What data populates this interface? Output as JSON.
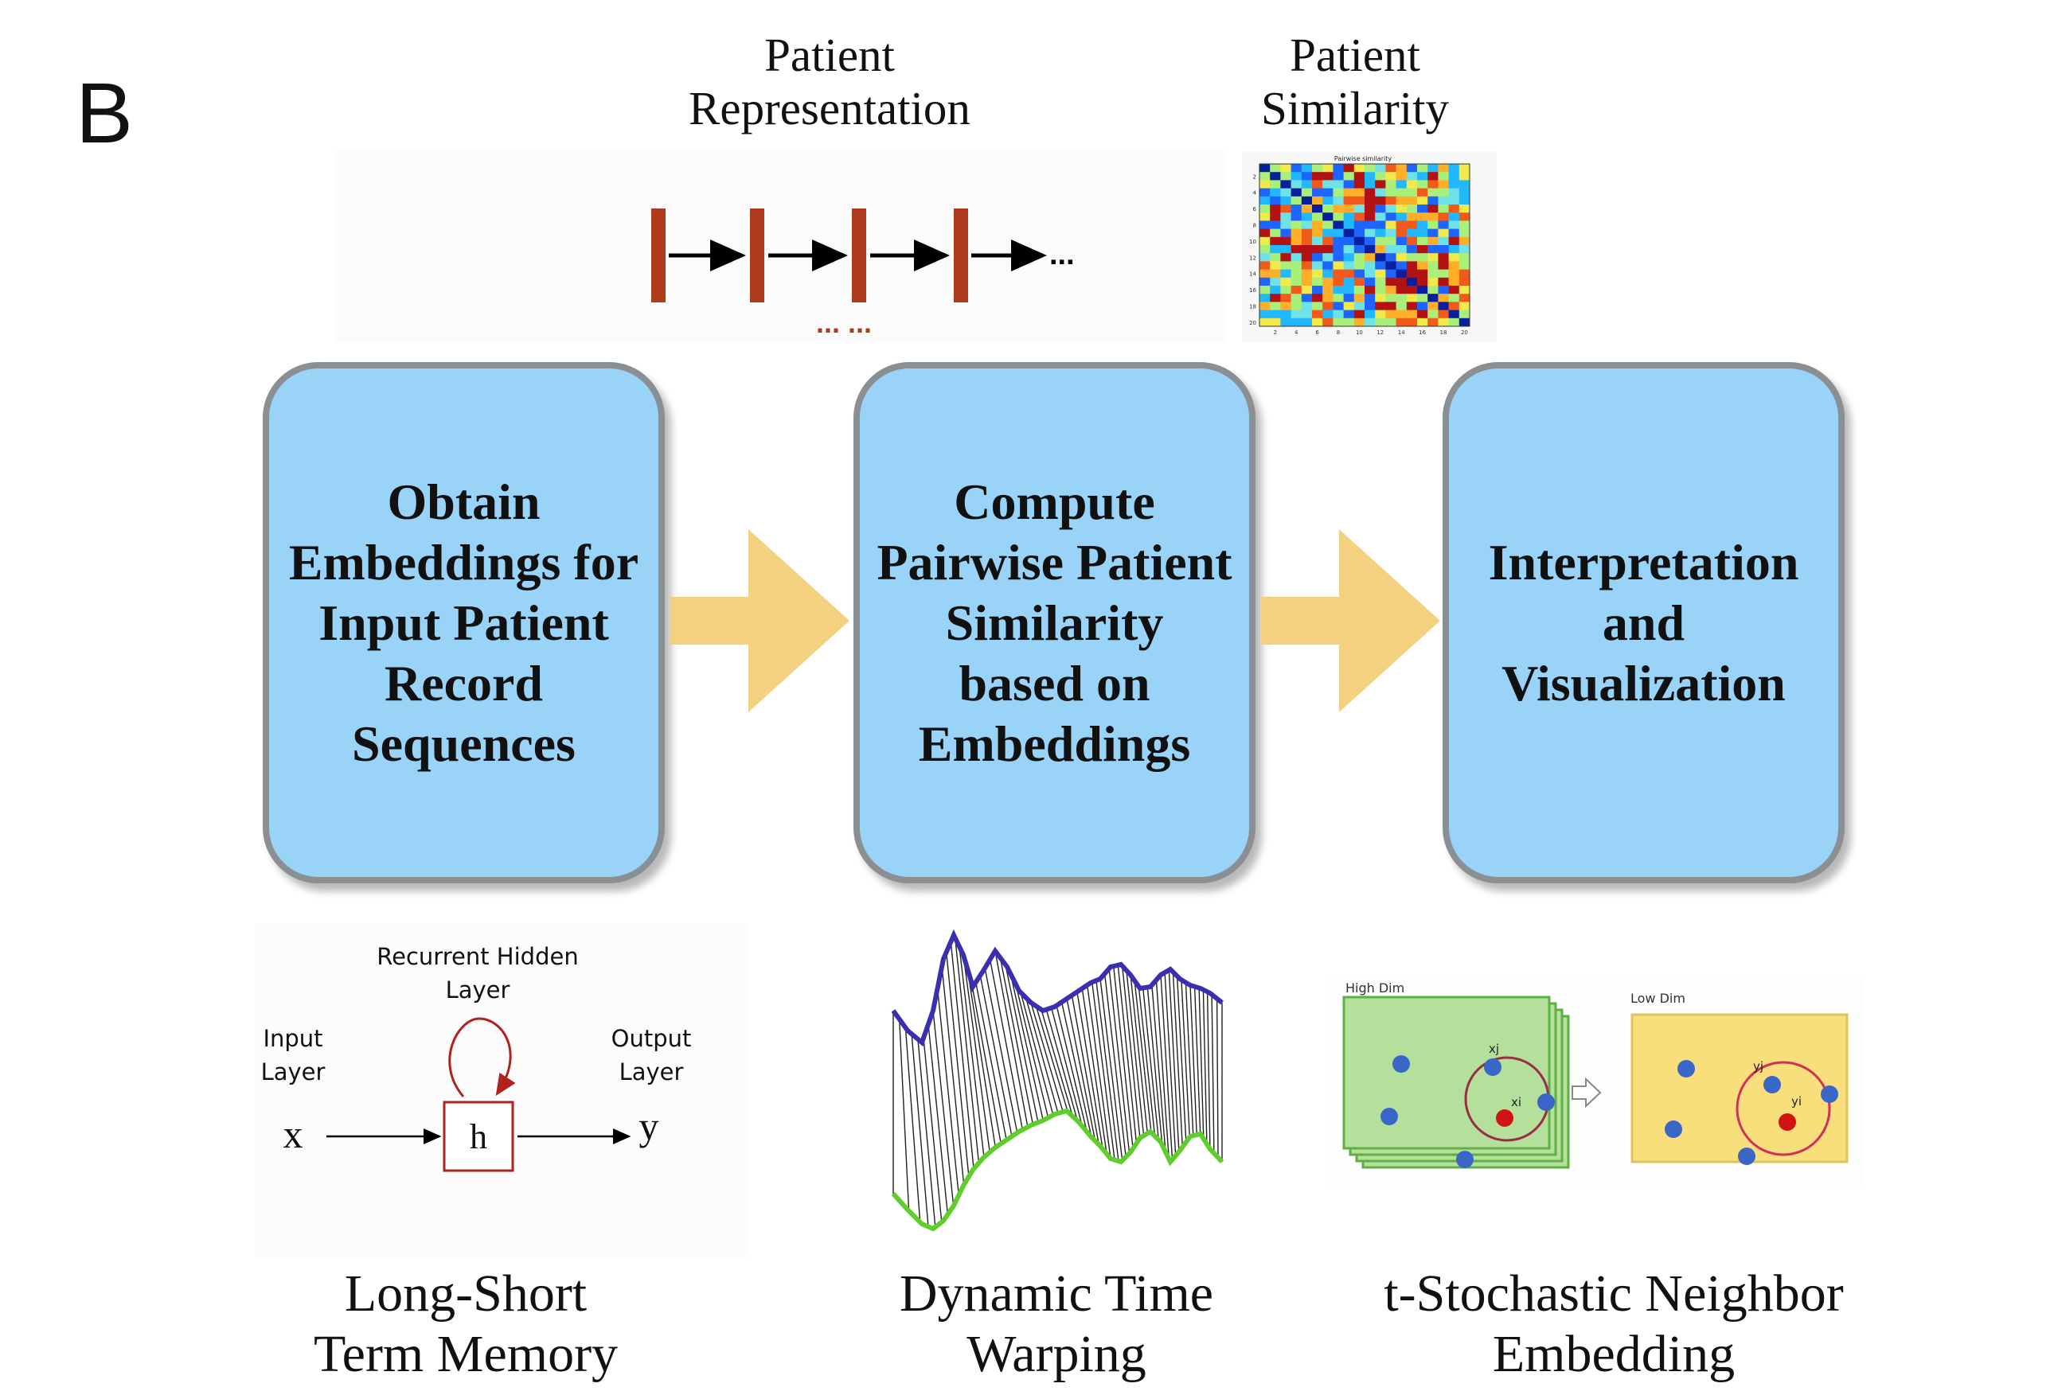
{
  "panel_letter": "B",
  "top_captions": {
    "representation": [
      "Patient",
      "Representation"
    ],
    "similarity": [
      "Patient",
      "Similarity"
    ]
  },
  "steps": [
    {
      "lines": [
        "Obtain",
        "Embeddings for",
        "Input Patient",
        "Record",
        "Sequences"
      ]
    },
    {
      "lines": [
        "Compute",
        "Pairwise Patient",
        "Similarity",
        "based on",
        "Embeddings"
      ]
    },
    {
      "lines": [
        "Interpretation",
        "and",
        "Visualization"
      ]
    }
  ],
  "bottom_captions": {
    "lstm": [
      "Long-Short",
      "Term Memory"
    ],
    "dtw": [
      "Dynamic Time",
      "Warping"
    ],
    "tsne": [
      "t-Stochastic Neighbor",
      "Embedding"
    ]
  },
  "lstm_diagram": {
    "hidden_label": [
      "Recurrent Hidden",
      "Layer"
    ],
    "input_label": [
      "Input",
      "Layer"
    ],
    "output_label": [
      "Output",
      "Layer"
    ],
    "x": "x",
    "h": "h",
    "y": "y"
  },
  "heatmap": {
    "title": "Pairwise similarity",
    "x_ticks": [
      "2",
      "4",
      "6",
      "8",
      "10",
      "12",
      "14",
      "16",
      "18",
      "20"
    ],
    "y_ticks": [
      "2",
      "4",
      "6",
      "8",
      "10",
      "12",
      "14",
      "16",
      "18",
      "20"
    ]
  },
  "tsne_diagram": {
    "high_dim_label": "High Dim",
    "low_dim_label": "Low Dim",
    "xj": "xj",
    "xi": "xi",
    "yj": "yj",
    "yi": "yi"
  },
  "sequence_ellipsis": "...",
  "sequence_sub_ellipsis": "... ...",
  "colors": {
    "box_fill": "#99d4f8",
    "box_border": "#8a8f94",
    "flow_arrow": "#f3d180",
    "sequence_bar": "#b03a1c",
    "lstm_red": "#b0221c",
    "dtw_top": "#3a2fae",
    "dtw_bottom": "#5fce2c",
    "tsne_green": "#b4e09c",
    "tsne_yellow": "#f8df7c",
    "tsne_blue": "#3a66c8",
    "tsne_red": "#d01414"
  }
}
